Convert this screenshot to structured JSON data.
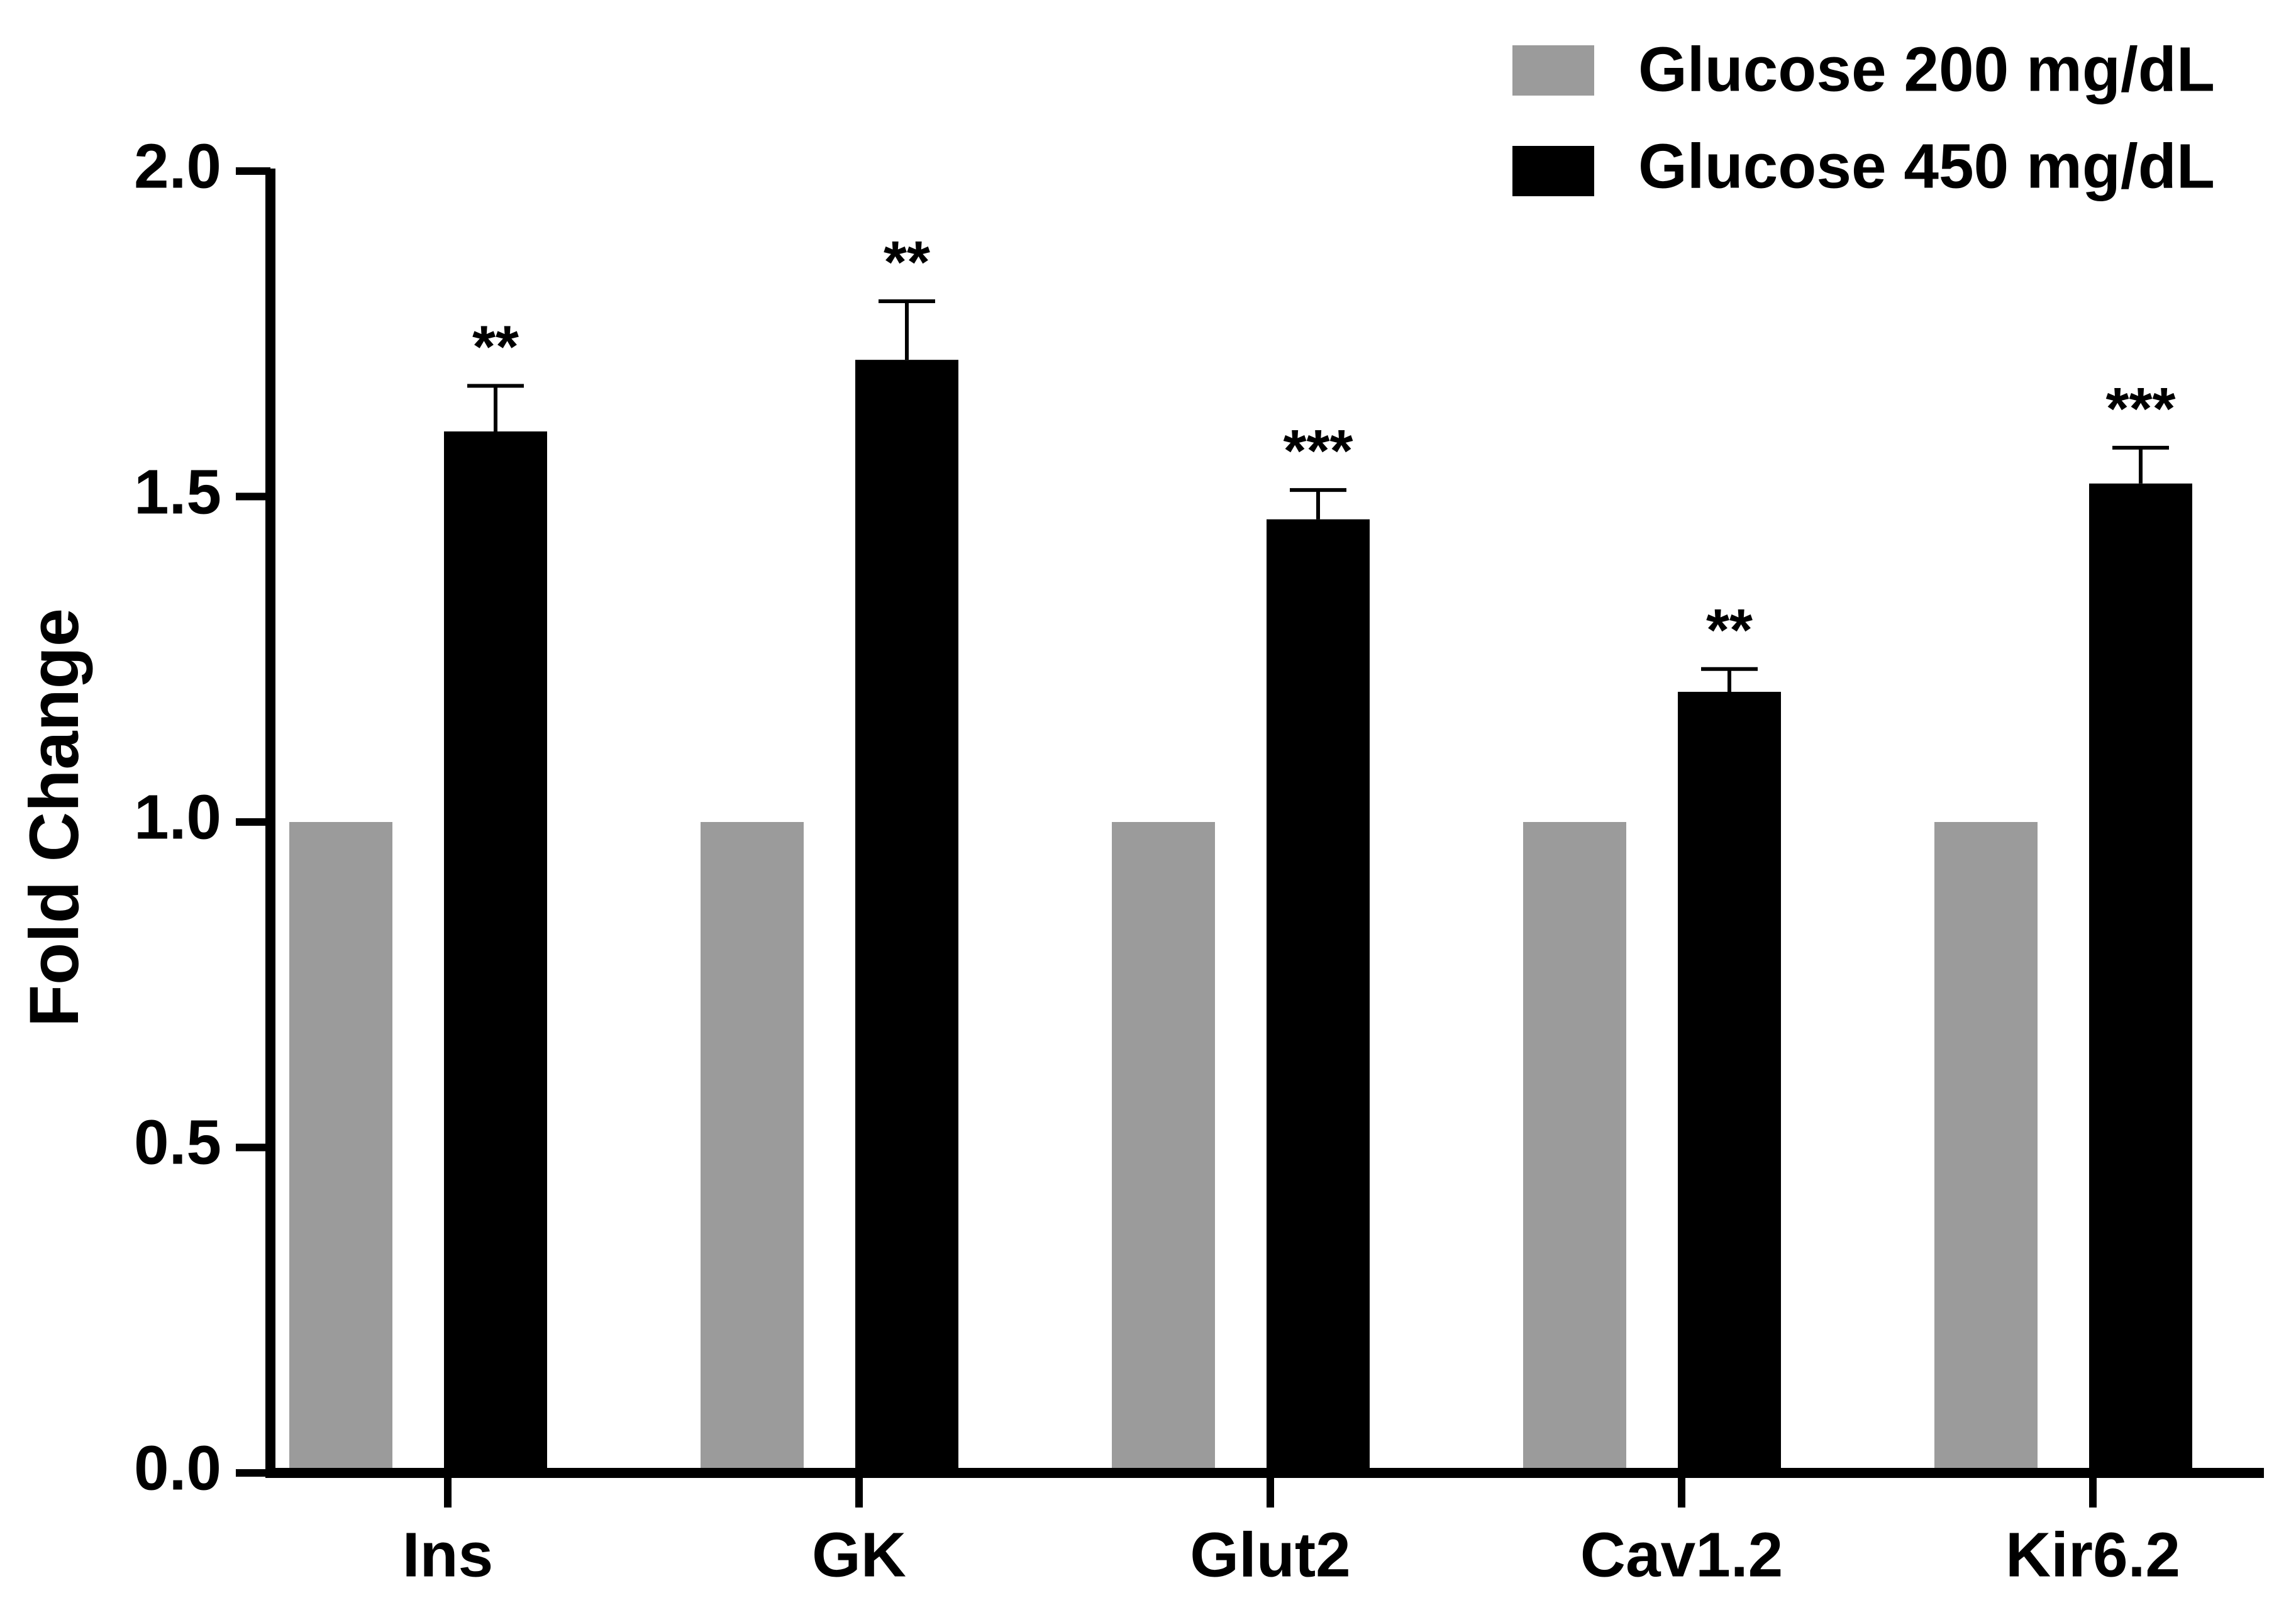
{
  "colors": {
    "series_200": "#9b9b9b",
    "series_450": "#000000",
    "axis": "#000000",
    "background": "#ffffff"
  },
  "chart_data": {
    "type": "bar",
    "title": "",
    "xlabel": "",
    "ylabel": "Fold Change",
    "ylim": [
      0,
      2.0
    ],
    "yticks": [
      "0.0",
      "0.5",
      "1.0",
      "1.5",
      "2.0"
    ],
    "categories": [
      "Ins",
      "GK",
      "Glut2",
      "Cav1.2",
      "Kir6.2"
    ],
    "series": [
      {
        "name": "Glucose 200 mg/dL",
        "values": [
          1.0,
          1.0,
          1.0,
          1.0,
          1.0
        ]
      },
      {
        "name": "Glucose 450 mg/dL",
        "values": [
          1.6,
          1.71,
          1.465,
          1.2,
          1.52
        ],
        "errors": [
          0.07,
          0.09,
          0.045,
          0.035,
          0.055
        ],
        "significance": [
          "**",
          "**",
          "***",
          "**",
          "***"
        ]
      }
    ],
    "legend_position": "top-right",
    "grid": false
  }
}
